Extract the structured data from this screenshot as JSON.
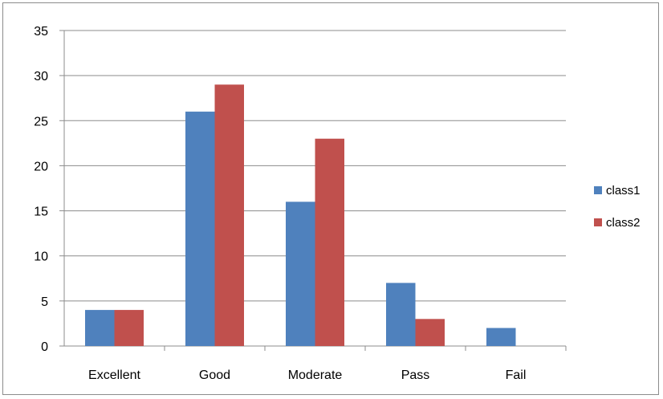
{
  "chart_data": {
    "type": "bar",
    "categories": [
      "Excellent",
      "Good",
      "Moderate",
      "Pass",
      "Fail"
    ],
    "series": [
      {
        "name": "class1",
        "values": [
          4,
          26,
          16,
          7,
          2
        ],
        "color": "#4f81bd"
      },
      {
        "name": "class2",
        "values": [
          4,
          29,
          23,
          3,
          0
        ],
        "color": "#c0504d"
      }
    ],
    "yticks": [
      0,
      5,
      10,
      15,
      20,
      25,
      30,
      35
    ],
    "ylim": [
      0,
      35
    ],
    "title": "",
    "xlabel": "",
    "ylabel": "",
    "grid": true,
    "legend_position": "right"
  }
}
